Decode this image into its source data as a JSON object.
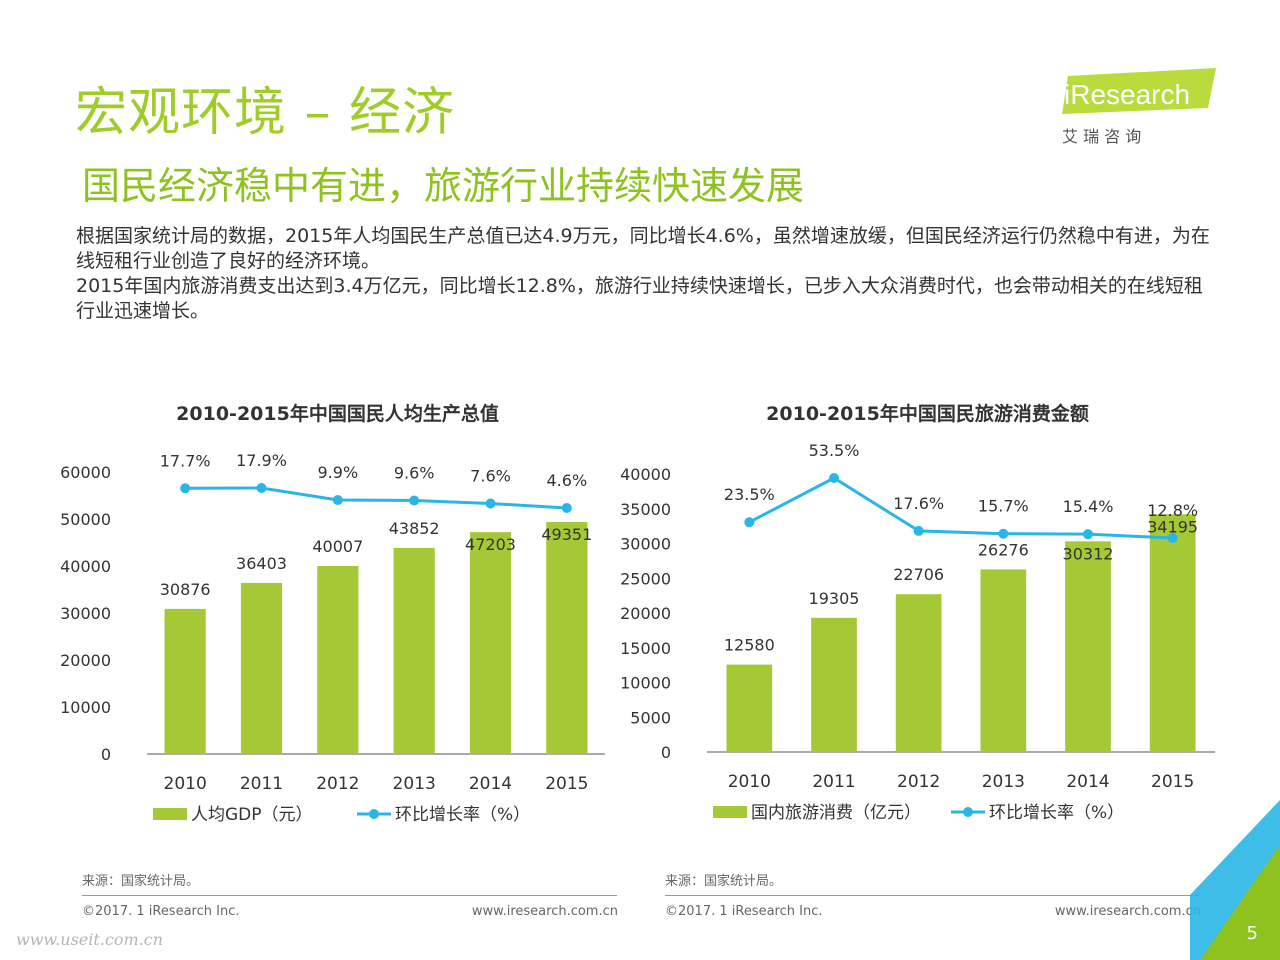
{
  "header": {
    "title": "宏观环境 – 经济",
    "subtitle": "国民经济稳中有进，旅游行业持续快速发展",
    "paragraphs": [
      "根据国家统计局的数据，2015年人均国民生产总值已达4.9万元，同比增长4.6%，虽然增速放缓，但国民经济运行仍然稳中有进，为在线短租行业创造了良好的经济环境。",
      "2015年国内旅游消费支出达到3.4万亿元，同比增长12.8%，旅游行业持续快速增长，已步入大众消费时代，也会带动相关的在线短租行业迅速增长。"
    ]
  },
  "logo": {
    "brand": "iResearch",
    "cn": "艾  瑞  咨  询"
  },
  "colors": {
    "bar": "#a5c936",
    "line": "#29b6e6",
    "title": "#a0cc2a"
  },
  "chart_data": [
    {
      "type": "bar",
      "title": "2010-2015年中国国民人均生产总值",
      "categories": [
        "2010",
        "2011",
        "2012",
        "2013",
        "2014",
        "2015"
      ],
      "ylim": [
        0,
        60000
      ],
      "yticks": [
        "0",
        "10000",
        "20000",
        "30000",
        "40000",
        "50000",
        "60000"
      ],
      "series": [
        {
          "name": "人均GDP（元）",
          "type": "bar",
          "values": [
            30876,
            36403,
            40007,
            43852,
            47203,
            49351
          ],
          "labels": [
            "30876",
            "36403",
            "40007",
            "43852",
            "47203",
            "49351"
          ]
        },
        {
          "name": "环比增长率（%）",
          "type": "line",
          "values": [
            17.7,
            17.9,
            9.9,
            9.6,
            7.6,
            4.6
          ],
          "labels": [
            "17.7%",
            "17.9%",
            "9.9%",
            "9.6%",
            "7.6%",
            "4.6%"
          ]
        }
      ],
      "legend": "bottom",
      "grid": false
    },
    {
      "type": "bar",
      "title": "2010-2015年中国国民旅游消费金额",
      "categories": [
        "2010",
        "2011",
        "2012",
        "2013",
        "2014",
        "2015"
      ],
      "ylim": [
        0,
        40000
      ],
      "yticks": [
        "0",
        "5000",
        "10000",
        "15000",
        "20000",
        "25000",
        "30000",
        "35000",
        "40000"
      ],
      "series": [
        {
          "name": "国内旅游消费（亿元）",
          "type": "bar",
          "values": [
            12580,
            19305,
            22706,
            26276,
            30312,
            34195
          ],
          "labels": [
            "12580",
            "19305",
            "22706",
            "26276",
            "30312",
            "34195"
          ]
        },
        {
          "name": "环比增长率（%）",
          "type": "line",
          "values": [
            23.5,
            53.5,
            17.6,
            15.7,
            15.4,
            12.8
          ],
          "labels": [
            "23.5%",
            "53.5%",
            "17.6%",
            "15.7%",
            "15.4%",
            "12.8%"
          ]
        }
      ],
      "legend": "bottom",
      "grid": false
    }
  ],
  "footer": {
    "left": {
      "source": "来源：国家统计局。",
      "copyright": "©2017. 1 iResearch Inc.",
      "website": "www.iresearch.com.cn"
    },
    "right": {
      "source": "来源：国家统计局。",
      "copyright": "©2017. 1 iResearch Inc.",
      "website": "www.iresearch.com.cn"
    },
    "watermark": "www.useit.com.cn",
    "page_number": "5"
  }
}
